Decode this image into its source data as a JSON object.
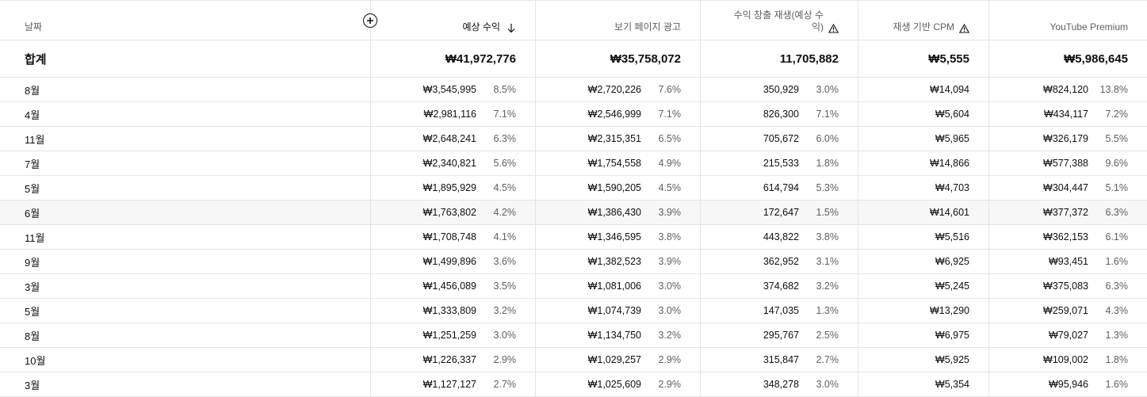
{
  "header": {
    "date": "날짜",
    "columns": [
      {
        "label": "예상 수익",
        "sorted": true
      },
      {
        "label": "보기 페이지 광고"
      },
      {
        "label_line1": "수익 창출 재생(예상 수",
        "label_line2": "익)",
        "warning": true
      },
      {
        "label": "재생 기반 CPM",
        "warning": true
      },
      {
        "label": "YouTube Premium"
      }
    ],
    "icons": {
      "add": "add-column-icon",
      "sort": "arrow-down-icon",
      "warning": "warning-icon"
    }
  },
  "total": {
    "label": "합계",
    "revenue": "₩41,972,776",
    "ads": "₩35,758,072",
    "playbacks": "11,705,882",
    "cpm": "₩5,555",
    "premium": "₩5,986,645"
  },
  "rows": [
    {
      "date": "8월",
      "revenue": "₩3,545,995",
      "revenue_pct": "8.5%",
      "ads": "₩2,720,226",
      "ads_pct": "7.6%",
      "playbacks": "350,929",
      "playbacks_pct": "3.0%",
      "cpm": "₩14,094",
      "premium": "₩824,120",
      "premium_pct": "13.8%"
    },
    {
      "date": "4월",
      "revenue": "₩2,981,116",
      "revenue_pct": "7.1%",
      "ads": "₩2,546,999",
      "ads_pct": "7.1%",
      "playbacks": "826,300",
      "playbacks_pct": "7.1%",
      "cpm": "₩5,604",
      "premium": "₩434,117",
      "premium_pct": "7.2%"
    },
    {
      "date": "11월",
      "revenue": "₩2,648,241",
      "revenue_pct": "6.3%",
      "ads": "₩2,315,351",
      "ads_pct": "6.5%",
      "playbacks": "705,672",
      "playbacks_pct": "6.0%",
      "cpm": "₩5,965",
      "premium": "₩326,179",
      "premium_pct": "5.5%"
    },
    {
      "date": "7월",
      "revenue": "₩2,340,821",
      "revenue_pct": "5.6%",
      "ads": "₩1,754,558",
      "ads_pct": "4.9%",
      "playbacks": "215,533",
      "playbacks_pct": "1.8%",
      "cpm": "₩14,866",
      "premium": "₩577,388",
      "premium_pct": "9.6%"
    },
    {
      "date": "5월",
      "revenue": "₩1,895,929",
      "revenue_pct": "4.5%",
      "ads": "₩1,590,205",
      "ads_pct": "4.5%",
      "playbacks": "614,794",
      "playbacks_pct": "5.3%",
      "cpm": "₩4,703",
      "premium": "₩304,447",
      "premium_pct": "5.1%"
    },
    {
      "date": "6월",
      "revenue": "₩1,763,802",
      "revenue_pct": "4.2%",
      "ads": "₩1,386,430",
      "ads_pct": "3.9%",
      "playbacks": "172,647",
      "playbacks_pct": "1.5%",
      "cpm": "₩14,601",
      "premium": "₩377,372",
      "premium_pct": "6.3%",
      "highlight": true
    },
    {
      "date": "11월",
      "revenue": "₩1,708,748",
      "revenue_pct": "4.1%",
      "ads": "₩1,346,595",
      "ads_pct": "3.8%",
      "playbacks": "443,822",
      "playbacks_pct": "3.8%",
      "cpm": "₩5,516",
      "premium": "₩362,153",
      "premium_pct": "6.1%"
    },
    {
      "date": "9월",
      "revenue": "₩1,499,896",
      "revenue_pct": "3.6%",
      "ads": "₩1,382,523",
      "ads_pct": "3.9%",
      "playbacks": "362,952",
      "playbacks_pct": "3.1%",
      "cpm": "₩6,925",
      "premium": "₩93,451",
      "premium_pct": "1.6%"
    },
    {
      "date": "3월",
      "revenue": "₩1,456,089",
      "revenue_pct": "3.5%",
      "ads": "₩1,081,006",
      "ads_pct": "3.0%",
      "playbacks": "374,682",
      "playbacks_pct": "3.2%",
      "cpm": "₩5,245",
      "premium": "₩375,083",
      "premium_pct": "6.3%"
    },
    {
      "date": "5월",
      "revenue": "₩1,333,809",
      "revenue_pct": "3.2%",
      "ads": "₩1,074,739",
      "ads_pct": "3.0%",
      "playbacks": "147,035",
      "playbacks_pct": "1.3%",
      "cpm": "₩13,290",
      "premium": "₩259,071",
      "premium_pct": "4.3%"
    },
    {
      "date": "8월",
      "revenue": "₩1,251,259",
      "revenue_pct": "3.0%",
      "ads": "₩1,134,750",
      "ads_pct": "3.2%",
      "playbacks": "295,767",
      "playbacks_pct": "2.5%",
      "cpm": "₩6,975",
      "premium": "₩79,027",
      "premium_pct": "1.3%"
    },
    {
      "date": "10월",
      "revenue": "₩1,226,337",
      "revenue_pct": "2.9%",
      "ads": "₩1,029,257",
      "ads_pct": "2.9%",
      "playbacks": "315,847",
      "playbacks_pct": "2.7%",
      "cpm": "₩5,925",
      "premium": "₩109,002",
      "premium_pct": "1.8%"
    },
    {
      "date": "3월",
      "revenue": "₩1,127,127",
      "revenue_pct": "2.7%",
      "ads": "₩1,025,609",
      "ads_pct": "2.9%",
      "playbacks": "348,278",
      "playbacks_pct": "3.0%",
      "cpm": "₩5,354",
      "premium": "₩95,946",
      "premium_pct": "1.6%"
    }
  ]
}
